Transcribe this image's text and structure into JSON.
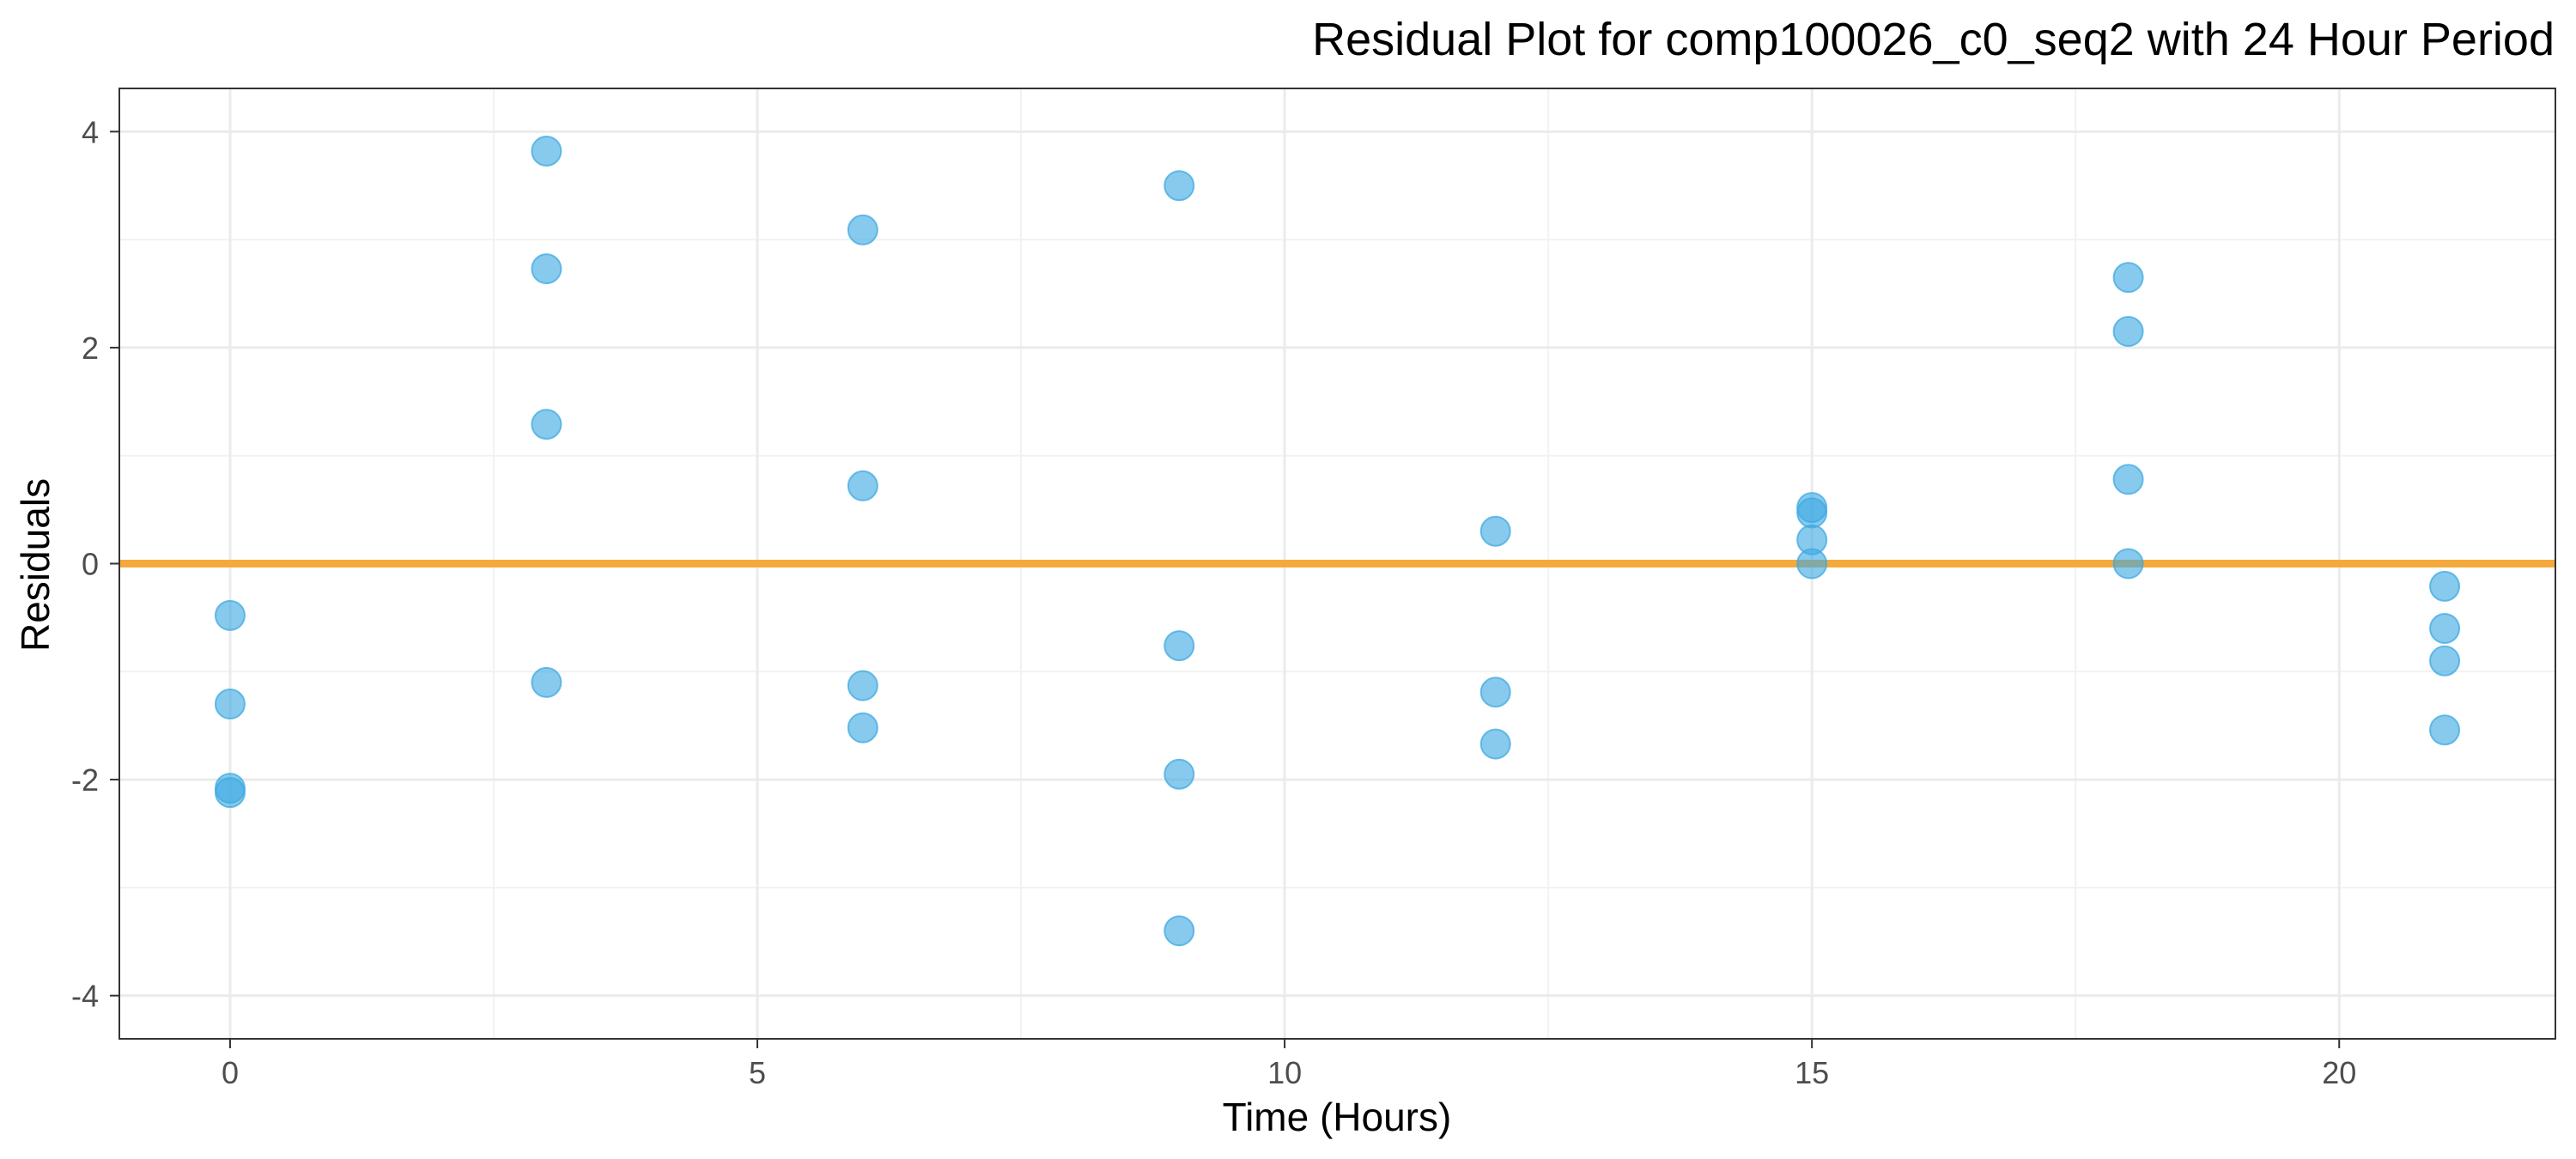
{
  "chart_data": {
    "type": "scatter",
    "title": "Residual Plot for comp100026_c0_seq2 with 24 Hour Period",
    "xlabel": "Time (Hours)",
    "ylabel": "Residuals",
    "xlim": [
      -1.05,
      22.05
    ],
    "ylim": [
      -4.4,
      4.4
    ],
    "x_ticks": [
      0,
      5,
      10,
      15,
      20
    ],
    "x_tick_labels": [
      "0",
      "5",
      "10",
      "15",
      "20"
    ],
    "y_ticks": [
      -4,
      -2,
      0,
      2,
      4
    ],
    "y_tick_labels": [
      "-4",
      "-2",
      "0",
      "2",
      "4"
    ],
    "grid": true,
    "reference_line": {
      "y": 0,
      "color": "#f5a93c"
    },
    "point_color": "#3ea9e2",
    "points": [
      {
        "x": 0,
        "y": -0.48
      },
      {
        "x": 0,
        "y": -1.3
      },
      {
        "x": 0,
        "y": -2.08
      },
      {
        "x": 0,
        "y": -2.12
      },
      {
        "x": 3,
        "y": 3.82
      },
      {
        "x": 3,
        "y": 2.73
      },
      {
        "x": 3,
        "y": 1.29
      },
      {
        "x": 3,
        "y": -1.1
      },
      {
        "x": 6,
        "y": 3.09
      },
      {
        "x": 6,
        "y": 0.72
      },
      {
        "x": 6,
        "y": -1.13
      },
      {
        "x": 6,
        "y": -1.52
      },
      {
        "x": 9,
        "y": 3.5
      },
      {
        "x": 9,
        "y": -0.76
      },
      {
        "x": 9,
        "y": -1.95
      },
      {
        "x": 9,
        "y": -3.4
      },
      {
        "x": 12,
        "y": 0.3
      },
      {
        "x": 12,
        "y": -1.19
      },
      {
        "x": 12,
        "y": -1.67
      },
      {
        "x": 15,
        "y": 0.52
      },
      {
        "x": 15,
        "y": 0.47
      },
      {
        "x": 15,
        "y": 0.22
      },
      {
        "x": 15,
        "y": 0.0
      },
      {
        "x": 18,
        "y": 2.65
      },
      {
        "x": 18,
        "y": 2.15
      },
      {
        "x": 18,
        "y": 0.78
      },
      {
        "x": 18,
        "y": 0.0
      },
      {
        "x": 21,
        "y": -0.21
      },
      {
        "x": 21,
        "y": -0.6
      },
      {
        "x": 21,
        "y": -0.9
      },
      {
        "x": 21,
        "y": -1.54
      }
    ]
  }
}
